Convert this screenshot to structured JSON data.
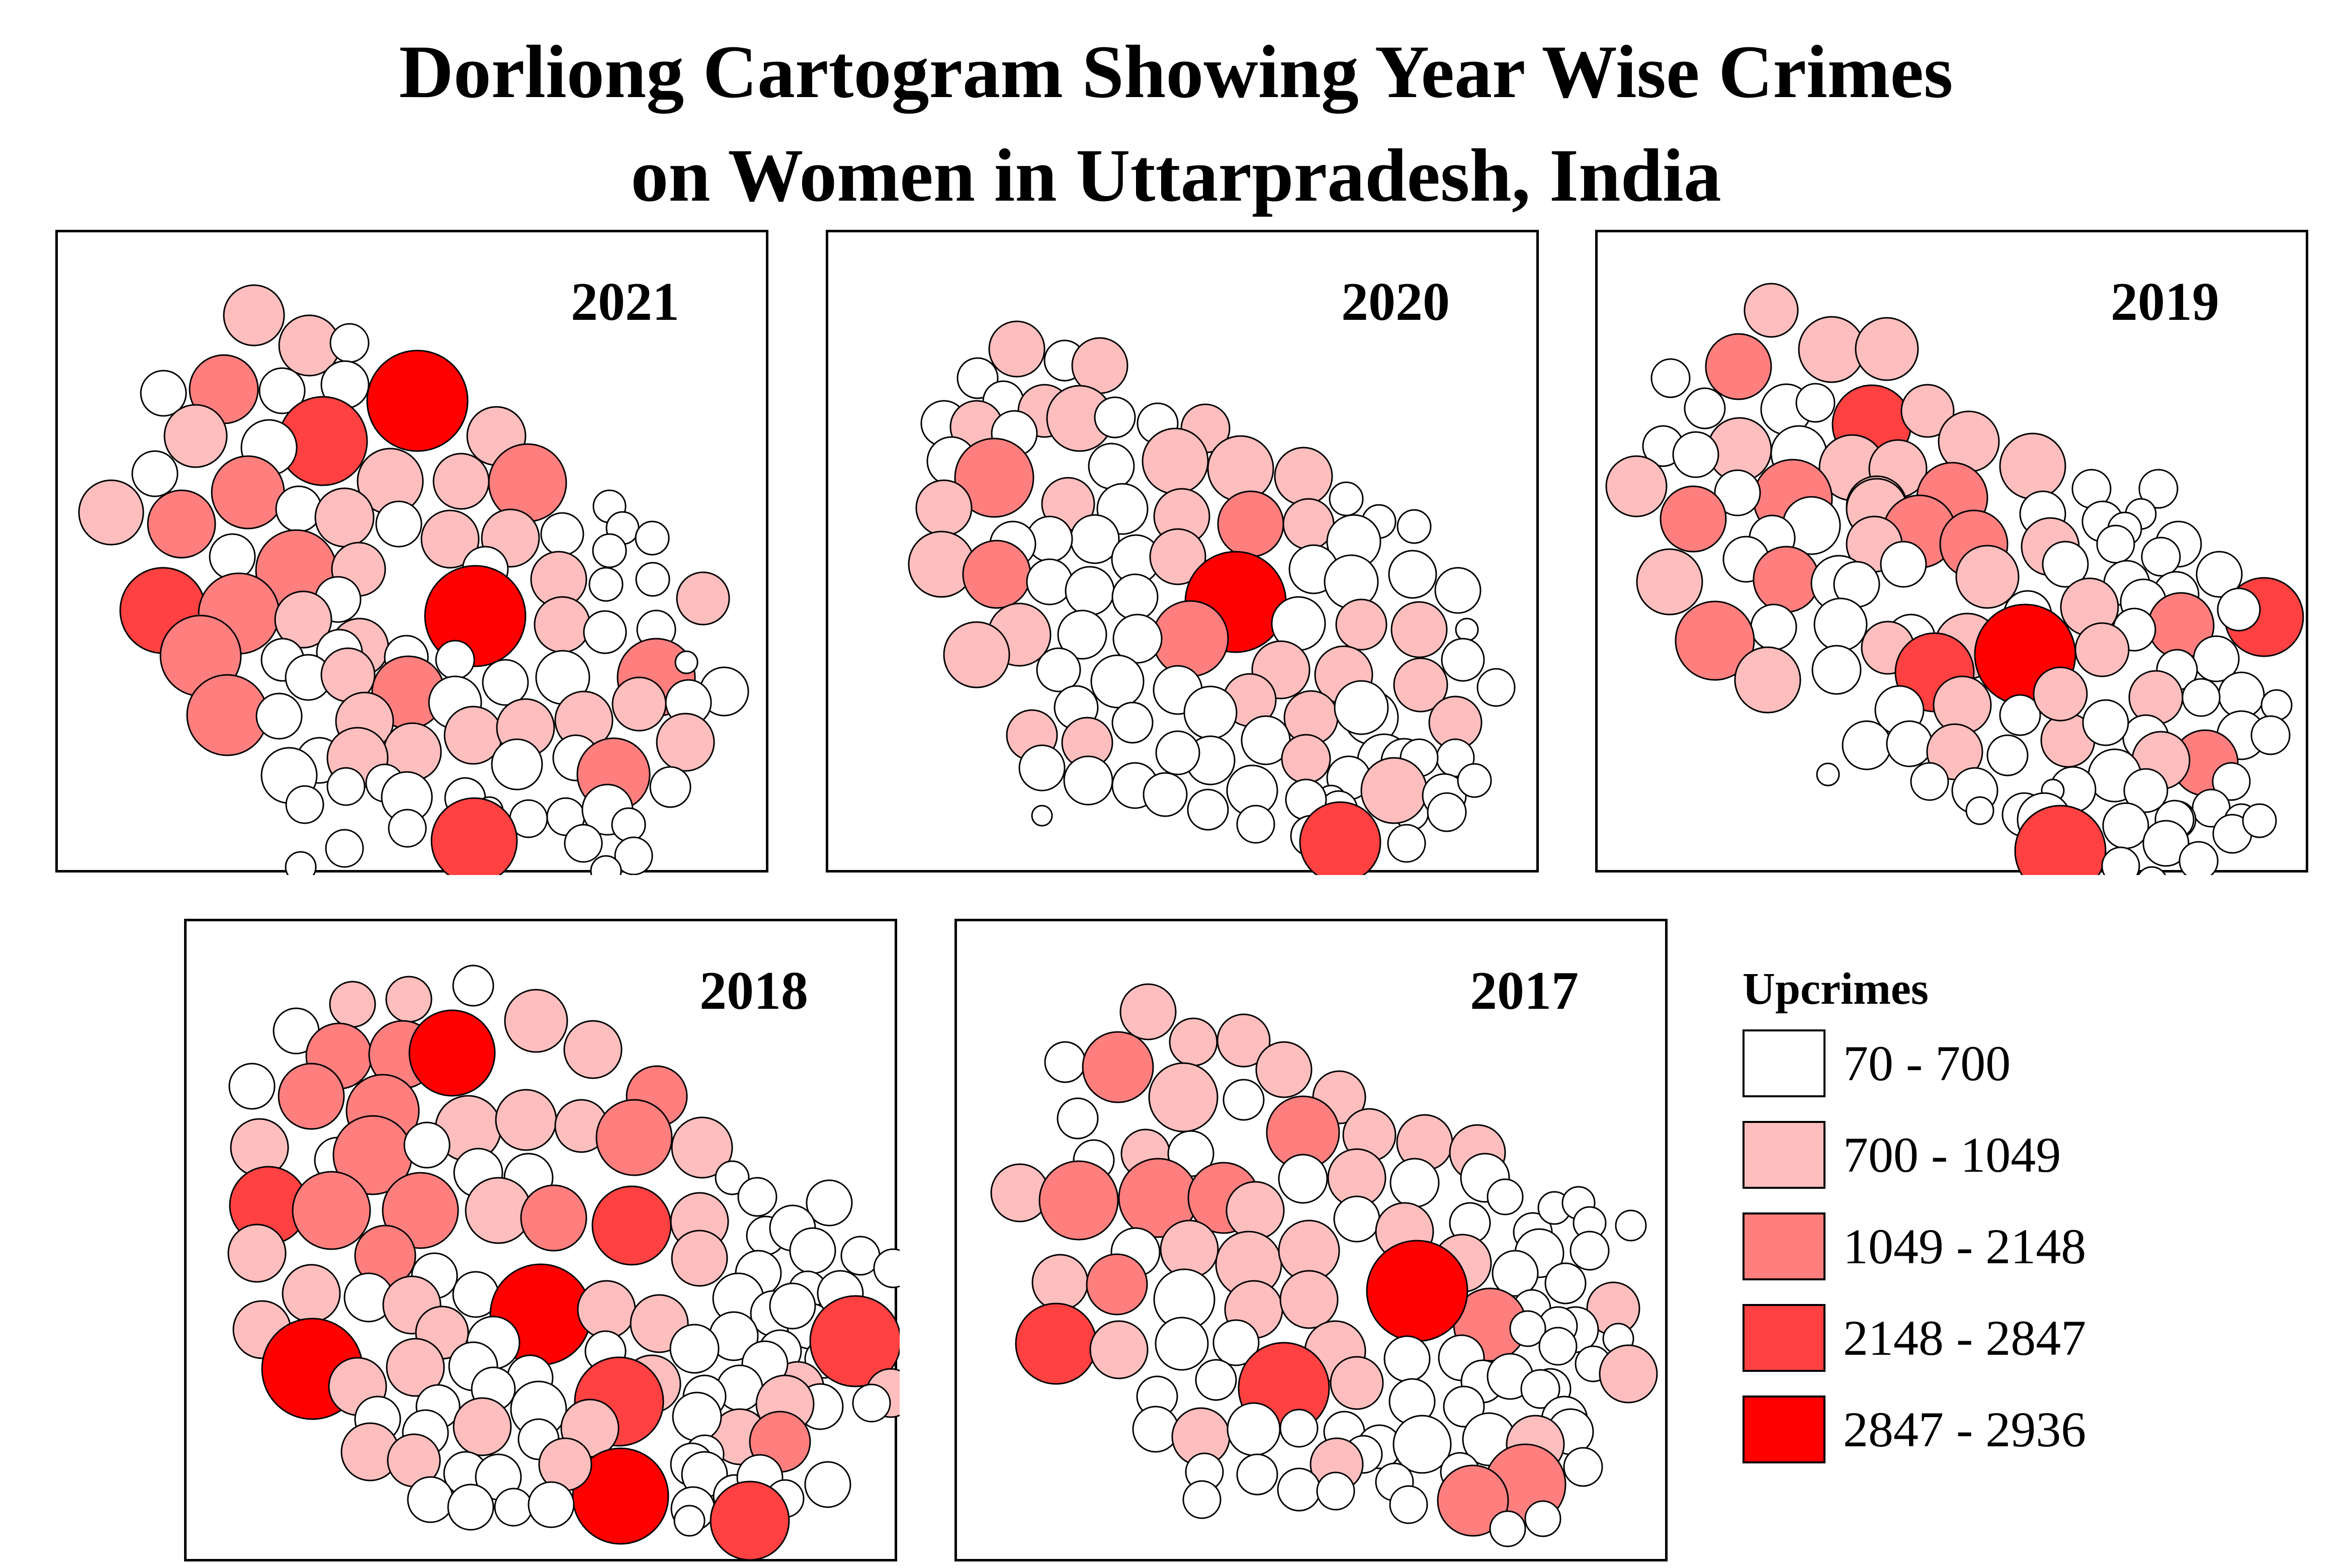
{
  "title": {
    "line1": "Dorliong Cartogram Showing Year Wise Crimes",
    "line2": "on Women in Uttarpradesh, India"
  },
  "legend": {
    "title": "Upcrimes",
    "classes": [
      {
        "label": "70 - 700",
        "color": "#ffffff"
      },
      {
        "label": "700 - 1049",
        "color": "#ffbebe"
      },
      {
        "label": "1049 - 2148",
        "color": "#ff7f7f"
      },
      {
        "label": "2148 - 2847",
        "color": "#ff4141"
      },
      {
        "label": "2847 - 2936",
        "color": "#ff0000"
      }
    ]
  },
  "maps": [
    {
      "year": "2021"
    },
    {
      "year": "2020"
    },
    {
      "year": "2019"
    },
    {
      "year": "2018"
    },
    {
      "year": "2017"
    }
  ]
}
